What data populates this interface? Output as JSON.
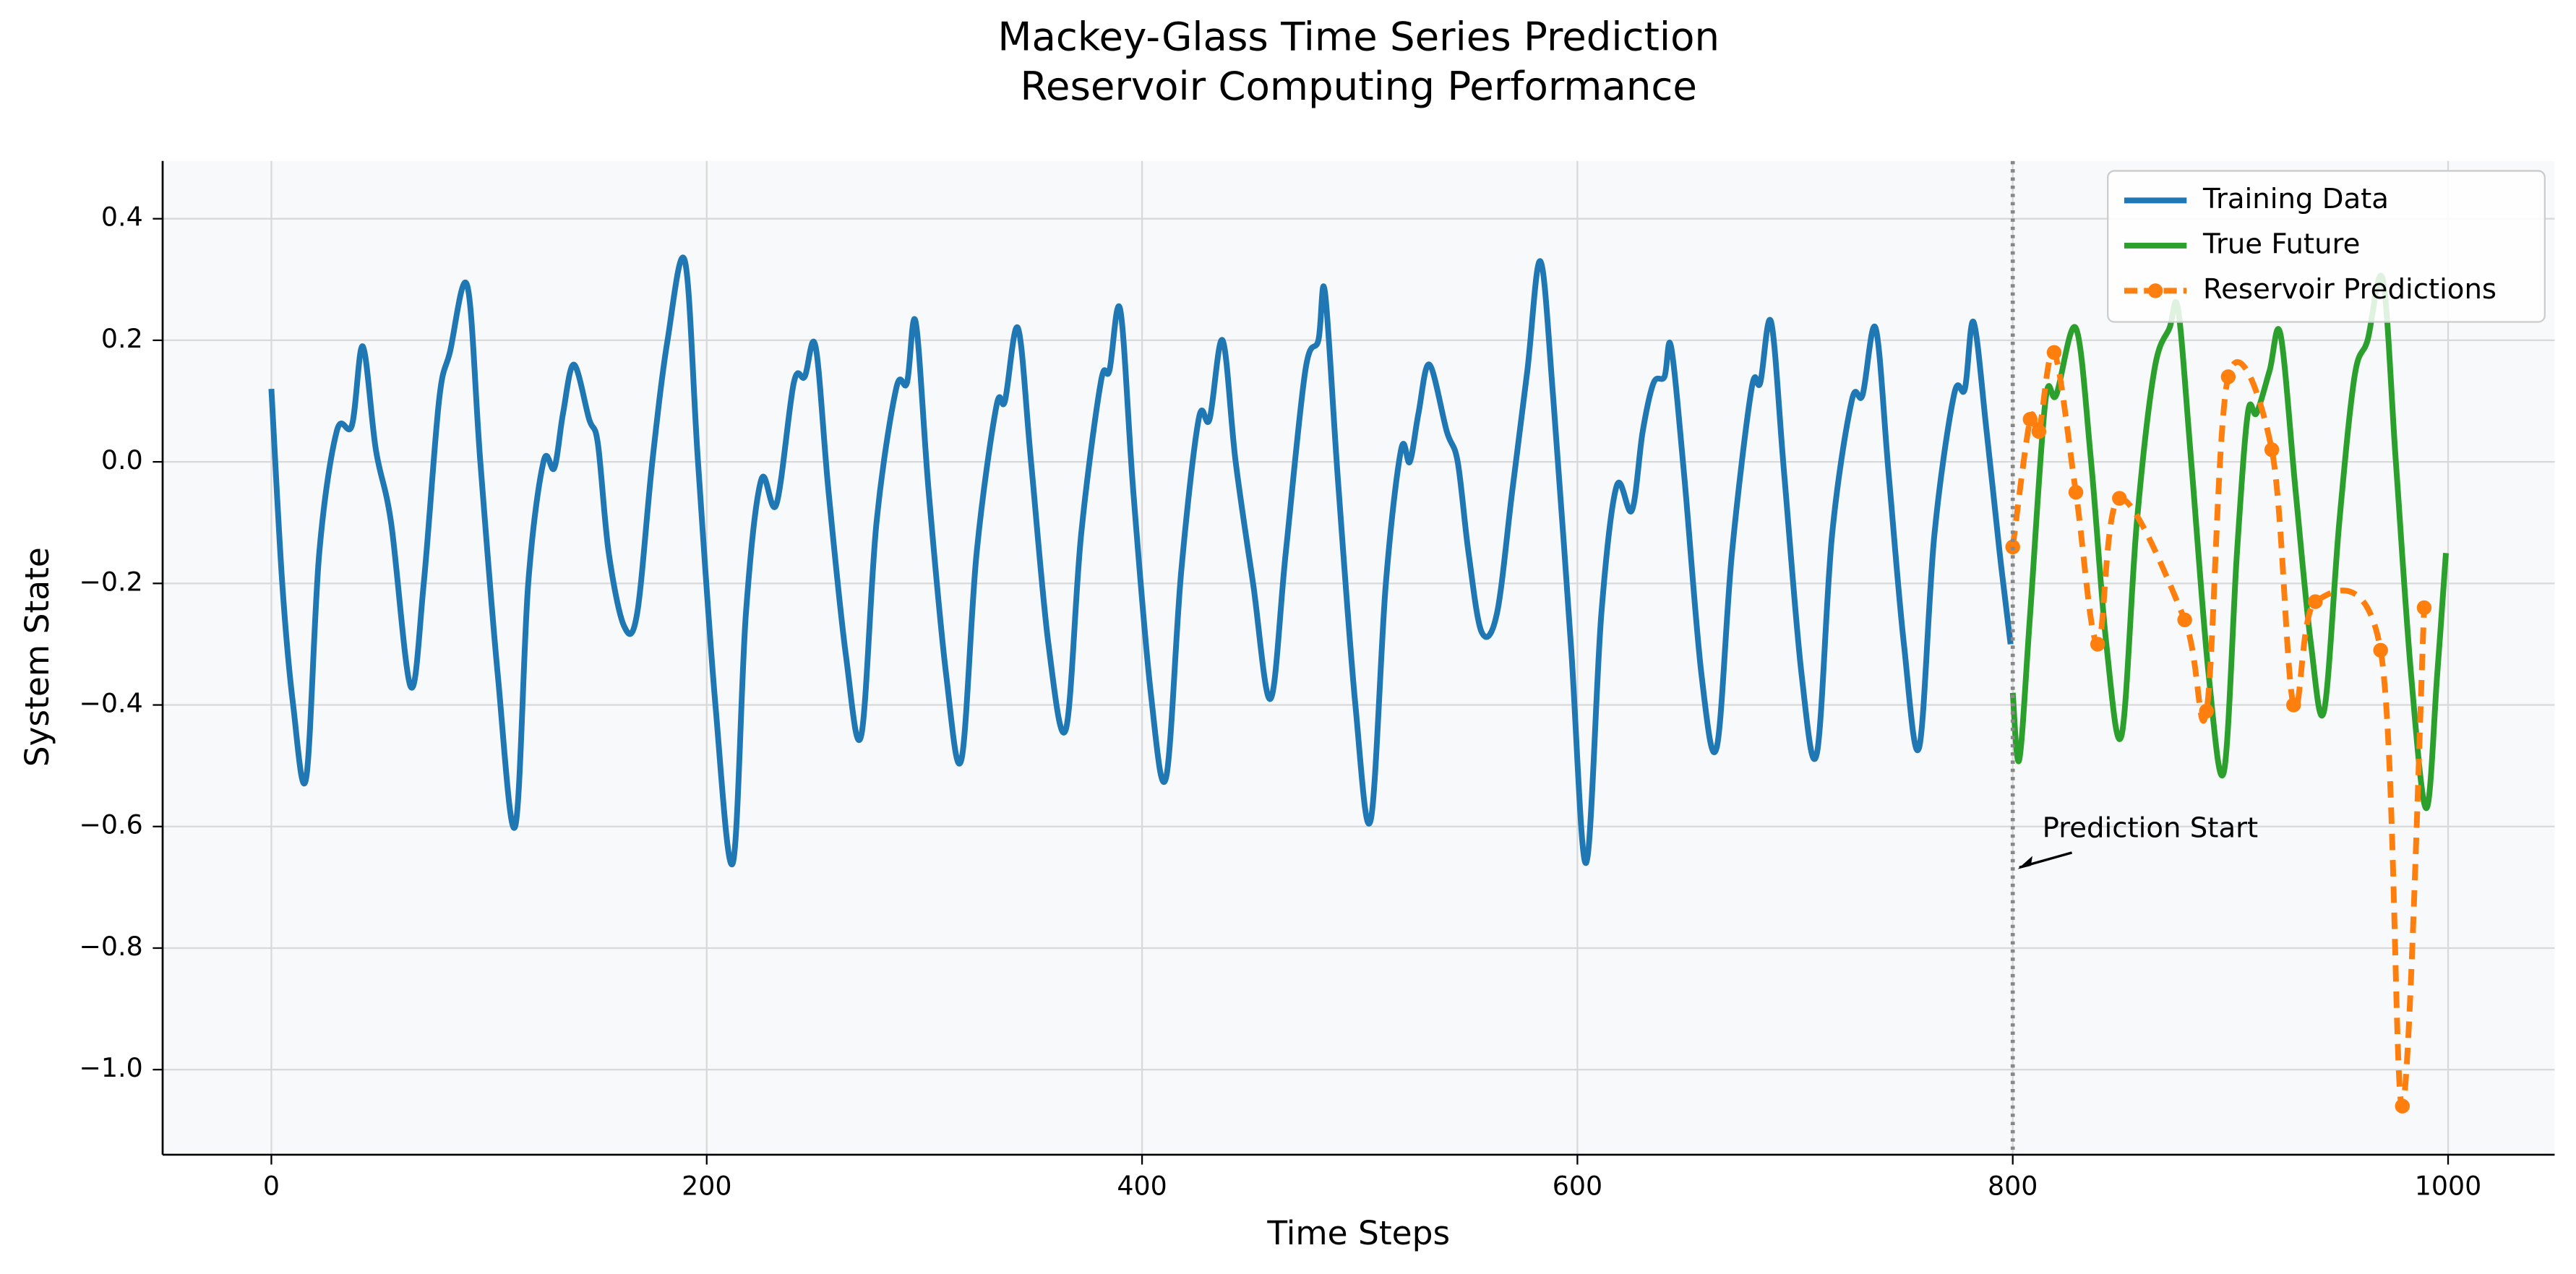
{
  "chart_data": {
    "type": "line",
    "title": "Mackey-Glass Time Series Prediction",
    "subtitle": "Reservoir Computing Performance",
    "x_label": "Time Steps",
    "y_label": "System State",
    "xlim": [
      -49.95,
      1048.95
    ],
    "ylim": [
      -1.14,
      0.495
    ],
    "xticks": [
      0,
      200,
      400,
      600,
      800,
      1000
    ],
    "yticks": [
      {
        "value": -1.0,
        "label": "−1.0"
      },
      {
        "value": -0.8,
        "label": "−0.8"
      },
      {
        "value": -0.6,
        "label": "−0.6"
      },
      {
        "value": -0.4,
        "label": "−0.4"
      },
      {
        "value": -0.2,
        "label": "−0.2"
      },
      {
        "value": 0.0,
        "label": "0.0"
      },
      0.2,
      0.4
    ],
    "grid": true,
    "legend": "upper right",
    "vline": 800,
    "annotations": [
      {
        "text": "Prediction Start",
        "x": 800,
        "y": -0.67
      }
    ],
    "series": [
      {
        "name": "Training Data",
        "color": "#1f77b4",
        "markers": false,
        "dashed": false,
        "x": [
          0,
          5,
          10,
          16,
          22,
          30,
          37,
          42,
          48,
          55,
          64,
          70,
          77,
          82,
          90,
          96,
          104,
          112,
          118,
          125,
          130,
          134,
          139,
          146,
          150,
          155,
          162,
          168,
          175,
          182,
          190,
          196,
          204,
          212,
          218,
          225,
          232,
          240,
          245,
          250,
          256,
          264,
          271,
          278,
          287,
          292,
          296,
          302,
          310,
          317,
          324,
          333,
          337,
          343,
          349,
          357,
          365,
          372,
          381,
          385,
          390,
          396,
          404,
          411,
          418,
          426,
          431,
          437,
          443,
          451,
          459,
          466,
          475,
          481,
          484,
          490,
          498,
          505,
          512,
          519,
          523,
          527,
          532,
          540,
          545,
          550,
          556,
          563,
          570,
          577,
          583,
          589,
          597,
          604,
          611,
          618,
          625,
          630,
          635,
          640,
          643,
          649,
          657,
          664,
          671,
          680,
          684,
          689,
          695,
          703,
          710,
          717,
          726,
          731,
          737,
          743,
          750,
          757,
          764,
          773,
          778,
          782,
          788,
          794,
          799
        ],
        "values": [
          0.12,
          -0.2,
          -0.4,
          -0.52,
          -0.15,
          0.05,
          0.06,
          0.19,
          0.02,
          -0.1,
          -0.37,
          -0.2,
          0.1,
          0.18,
          0.29,
          0.0,
          -0.35,
          -0.6,
          -0.2,
          0.0,
          -0.01,
          0.08,
          0.16,
          0.07,
          0.03,
          -0.15,
          -0.27,
          -0.25,
          0.0,
          0.2,
          0.33,
          0.0,
          -0.4,
          -0.66,
          -0.25,
          -0.03,
          -0.07,
          0.13,
          0.14,
          0.19,
          -0.05,
          -0.32,
          -0.45,
          -0.1,
          0.12,
          0.13,
          0.23,
          -0.05,
          -0.35,
          -0.49,
          -0.15,
          0.09,
          0.1,
          0.22,
          0.0,
          -0.3,
          -0.44,
          -0.12,
          0.13,
          0.15,
          0.25,
          -0.05,
          -0.38,
          -0.52,
          -0.18,
          0.07,
          0.07,
          0.2,
          0.0,
          -0.2,
          -0.39,
          -0.15,
          0.15,
          0.2,
          0.28,
          -0.03,
          -0.4,
          -0.59,
          -0.2,
          0.02,
          0.0,
          0.08,
          0.16,
          0.05,
          0.0,
          -0.15,
          -0.28,
          -0.25,
          -0.05,
          0.15,
          0.33,
          0.1,
          -0.3,
          -0.66,
          -0.25,
          -0.04,
          -0.08,
          0.05,
          0.13,
          0.14,
          0.19,
          -0.02,
          -0.35,
          -0.47,
          -0.15,
          0.12,
          0.13,
          0.23,
          -0.02,
          -0.35,
          -0.48,
          -0.12,
          0.1,
          0.11,
          0.22,
          -0.02,
          -0.3,
          -0.47,
          -0.12,
          0.11,
          0.12,
          0.23,
          0.05,
          -0.15,
          -0.3
        ]
      },
      {
        "name": "True Future",
        "color": "#2ca02c",
        "markers": false,
        "dashed": false,
        "x": [
          800,
          803,
          808,
          815,
          820,
          829,
          836,
          843,
          850,
          857,
          865,
          872,
          876,
          882,
          890,
          897,
          903,
          908,
          912,
          918,
          923,
          930,
          937,
          943,
          950,
          957,
          963,
          970,
          976,
          983,
          990,
          995,
          999
        ],
        "values": [
          -0.38,
          -0.49,
          -0.25,
          0.1,
          0.11,
          0.22,
          0.0,
          -0.3,
          -0.45,
          -0.1,
          0.15,
          0.22,
          0.25,
          0.0,
          -0.35,
          -0.51,
          -0.15,
          0.08,
          0.08,
          0.15,
          0.21,
          -0.05,
          -0.3,
          -0.41,
          -0.1,
          0.14,
          0.2,
          0.3,
          0.0,
          -0.35,
          -0.57,
          -0.35,
          -0.15
        ]
      },
      {
        "name": "Reservoir Predictions",
        "color": "#ff7f0e",
        "markers": true,
        "dashed": true,
        "x": [
          800,
          808,
          812,
          819,
          829,
          839,
          849,
          879,
          889,
          899,
          919,
          929,
          939,
          969,
          979,
          989
        ],
        "values": [
          -0.14,
          0.07,
          0.05,
          0.18,
          -0.05,
          -0.3,
          -0.06,
          -0.26,
          -0.41,
          0.14,
          0.02,
          -0.4,
          -0.23,
          -0.31,
          -1.06,
          -0.24
        ]
      }
    ]
  }
}
